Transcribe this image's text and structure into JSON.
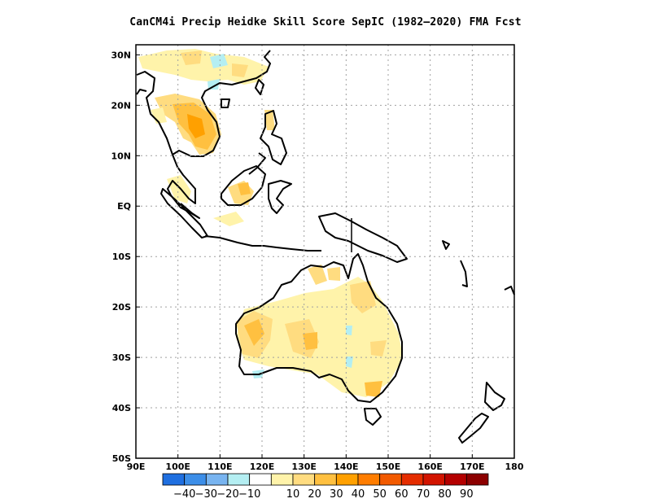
{
  "title": "CanCM4i Precip Heidke Skill Score SepIC (1982—2020) FMA Fcst",
  "map": {
    "lon_range": [
      90,
      180
    ],
    "lat_range": [
      -50,
      32
    ],
    "x_ticks": [
      {
        "lon": 90,
        "label": "90E"
      },
      {
        "lon": 100,
        "label": "100E"
      },
      {
        "lon": 110,
        "label": "110E"
      },
      {
        "lon": 120,
        "label": "120E"
      },
      {
        "lon": 130,
        "label": "130E"
      },
      {
        "lon": 140,
        "label": "140E"
      },
      {
        "lon": 150,
        "label": "150E"
      },
      {
        "lon": 160,
        "label": "160E"
      },
      {
        "lon": 170,
        "label": "170E"
      },
      {
        "lon": 180,
        "label": "180"
      }
    ],
    "y_ticks": [
      {
        "lat": 30,
        "label": "30N"
      },
      {
        "lat": 20,
        "label": "20N"
      },
      {
        "lat": 10,
        "label": "10N"
      },
      {
        "lat": 0,
        "label": "EQ"
      },
      {
        "lat": -10,
        "label": "10S"
      },
      {
        "lat": -20,
        "label": "20S"
      },
      {
        "lat": -30,
        "label": "30S"
      },
      {
        "lat": -40,
        "label": "40S"
      },
      {
        "lat": -50,
        "label": "50S"
      }
    ],
    "grid": "dotted"
  },
  "colorbar": {
    "colors": [
      "#1f6fe0",
      "#3c8ee8",
      "#78b4f0",
      "#b4eef2",
      "#ffffff",
      "#fff3aa",
      "#ffdc80",
      "#ffc040",
      "#ffa000",
      "#ff7d00",
      "#f25a00",
      "#e52d00",
      "#d21400",
      "#b40000",
      "#8c0000"
    ],
    "labels": [
      "−40",
      "−30",
      "−20",
      "−10",
      "10",
      "20",
      "30",
      "40",
      "50",
      "60",
      "70",
      "80",
      "90"
    ]
  },
  "colors": {
    "land_outline": "#000000",
    "grid": "#a0a0a0"
  }
}
